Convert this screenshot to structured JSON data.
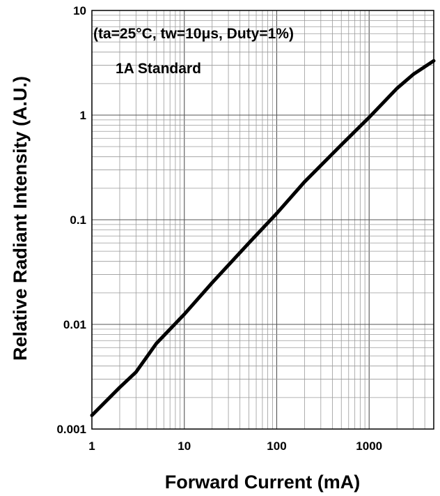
{
  "chart_data": {
    "type": "line",
    "title": "",
    "xlabel": "Forward Current (mA)",
    "ylabel": "Relative Radiant Intensity (A.U.)",
    "x_scale": "log",
    "y_scale": "log",
    "xlim": [
      1,
      5000
    ],
    "ylim": [
      0.001,
      10
    ],
    "grid": true,
    "x_ticks": [
      {
        "value": 1,
        "label": "1"
      },
      {
        "value": 10,
        "label": "10"
      },
      {
        "value": 100,
        "label": "100"
      },
      {
        "value": 1000,
        "label": "1000"
      }
    ],
    "y_ticks": [
      {
        "value": 0.001,
        "label": "0.001"
      },
      {
        "value": 0.01,
        "label": "0.01"
      },
      {
        "value": 0.1,
        "label": "0.1"
      },
      {
        "value": 1,
        "label": "1"
      },
      {
        "value": 10,
        "label": "10"
      }
    ],
    "annotations": [
      "(ta=25°C, tw=10μs, Duty=1%)",
      "1A Standard"
    ],
    "series": [
      {
        "x": [
          1,
          2,
          3,
          5,
          10,
          20,
          50,
          100,
          200,
          500,
          1000,
          2000,
          3000,
          5000
        ],
        "y": [
          0.00135,
          0.0025,
          0.0035,
          0.0066,
          0.0125,
          0.025,
          0.06,
          0.115,
          0.23,
          0.52,
          0.95,
          1.8,
          2.45,
          3.3
        ],
        "color": "#000000"
      }
    ]
  }
}
